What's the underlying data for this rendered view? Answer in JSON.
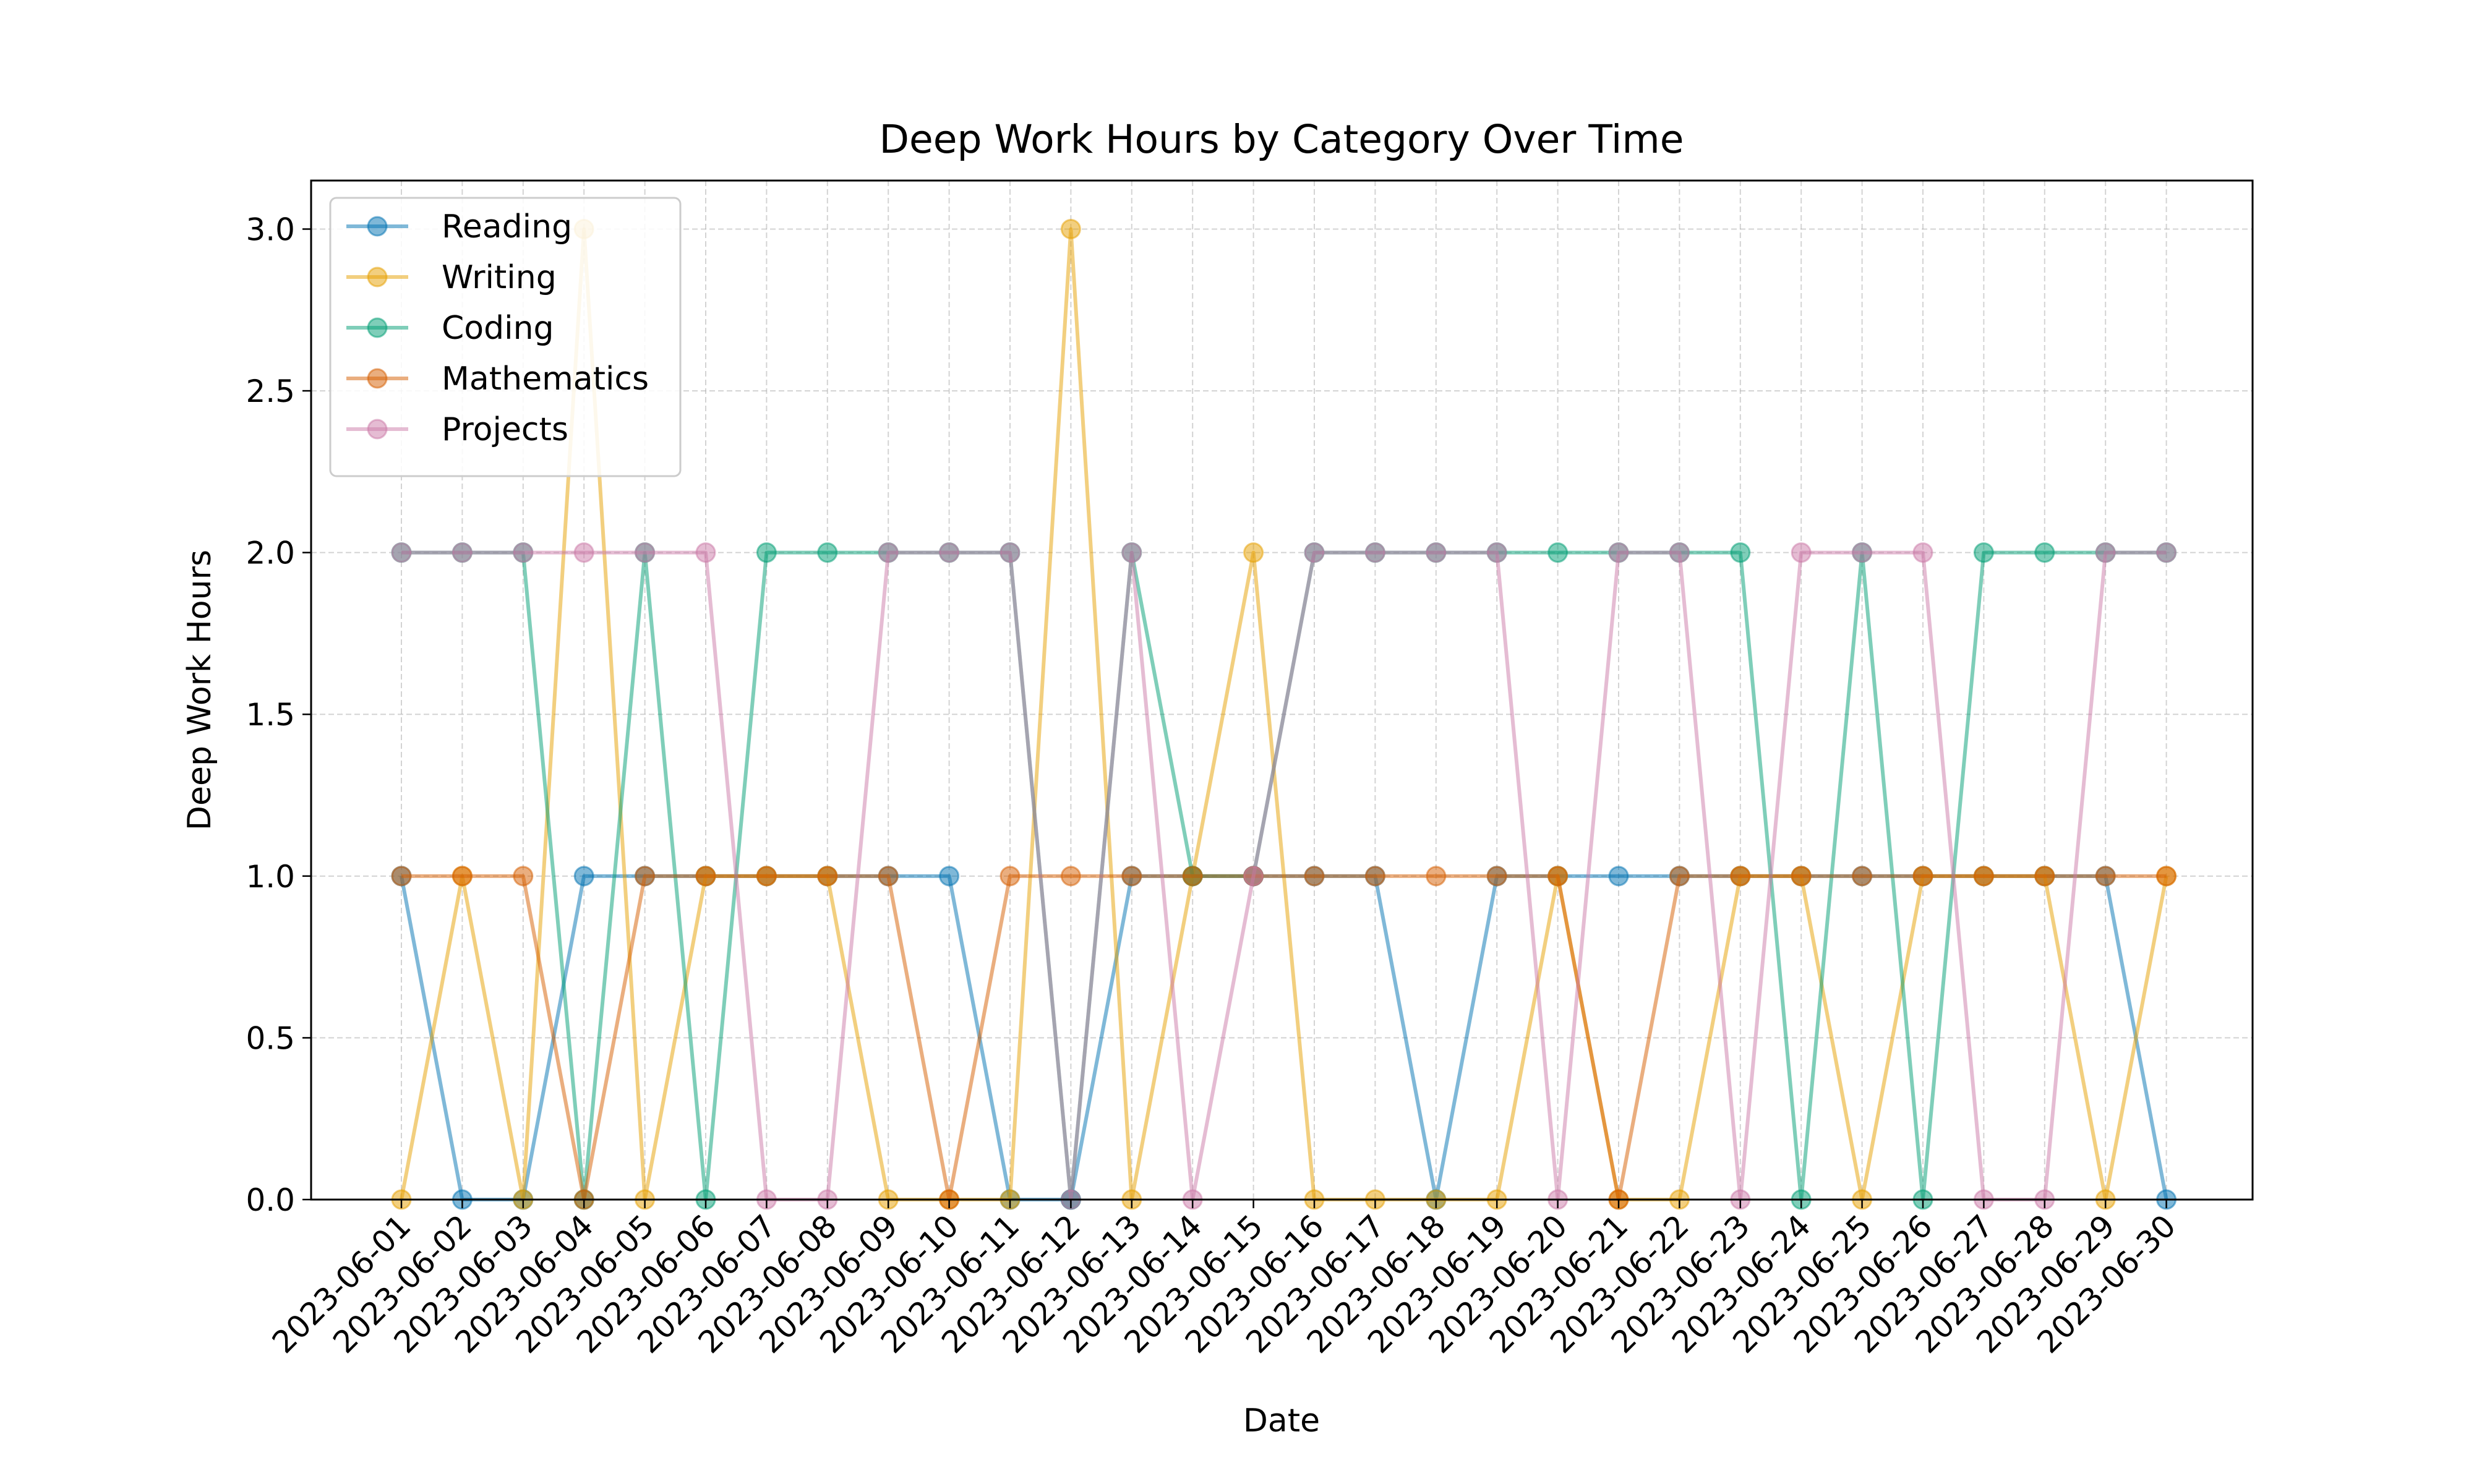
{
  "chart_data": {
    "type": "line",
    "title": "Deep Work Hours by Category Over Time",
    "xlabel": "Date",
    "ylabel": "Deep Work Hours",
    "ylim": [
      0,
      3.15
    ],
    "yticks": [
      "0.0",
      "0.5",
      "1.0",
      "1.5",
      "2.0",
      "2.5",
      "3.0"
    ],
    "grid": true,
    "legend_position": "top-left",
    "x": [
      "2023-06-01",
      "2023-06-02",
      "2023-06-03",
      "2023-06-04",
      "2023-06-05",
      "2023-06-06",
      "2023-06-07",
      "2023-06-08",
      "2023-06-09",
      "2023-06-10",
      "2023-06-11",
      "2023-06-12",
      "2023-06-13",
      "2023-06-14",
      "2023-06-15",
      "2023-06-16",
      "2023-06-17",
      "2023-06-18",
      "2023-06-19",
      "2023-06-20",
      "2023-06-21",
      "2023-06-22",
      "2023-06-23",
      "2023-06-24",
      "2023-06-25",
      "2023-06-26",
      "2023-06-27",
      "2023-06-28",
      "2023-06-29",
      "2023-06-30"
    ],
    "series": [
      {
        "name": "Reading",
        "color": "#0072B2",
        "values": [
          1,
          0,
          0,
          1,
          1,
          1,
          1,
          1,
          1,
          1,
          0,
          0,
          1,
          1,
          1,
          1,
          1,
          0,
          1,
          1,
          1,
          1,
          1,
          1,
          1,
          1,
          1,
          1,
          1,
          0
        ]
      },
      {
        "name": "Writing",
        "color": "#E69F00",
        "values": [
          0,
          1,
          0,
          3,
          0,
          1,
          1,
          1,
          0,
          0,
          0,
          3,
          0,
          1,
          2,
          0,
          0,
          0,
          0,
          1,
          0,
          0,
          1,
          1,
          0,
          1,
          1,
          1,
          0,
          1
        ]
      },
      {
        "name": "Coding",
        "color": "#009E73",
        "values": [
          2,
          2,
          2,
          0,
          2,
          0,
          2,
          2,
          2,
          2,
          2,
          0,
          2,
          1,
          1,
          2,
          2,
          2,
          2,
          2,
          2,
          2,
          2,
          0,
          2,
          0,
          2,
          2,
          2,
          2
        ]
      },
      {
        "name": "Mathematics",
        "color": "#D55E00",
        "values": [
          1,
          1,
          1,
          0,
          1,
          1,
          1,
          1,
          1,
          0,
          1,
          1,
          1,
          1,
          1,
          1,
          1,
          1,
          1,
          1,
          0,
          1,
          1,
          1,
          1,
          1,
          1,
          1,
          1,
          1
        ]
      },
      {
        "name": "Projects",
        "color": "#CC79A7",
        "values": [
          2,
          2,
          2,
          2,
          2,
          2,
          0,
          0,
          2,
          2,
          2,
          0,
          2,
          0,
          1,
          2,
          2,
          2,
          2,
          0,
          2,
          2,
          0,
          2,
          2,
          2,
          0,
          0,
          2,
          2
        ]
      }
    ]
  }
}
